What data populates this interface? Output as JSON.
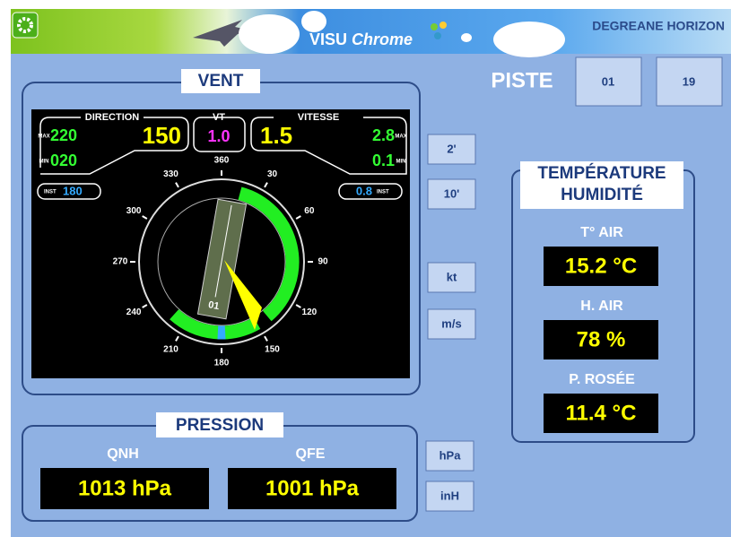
{
  "header": {
    "app_name": "VISU",
    "app_name_suffix": "Chrome",
    "company": "DEGREANE HORIZON"
  },
  "wind": {
    "title": "VENT",
    "direction": {
      "label": "DIRECTION",
      "max_tag": "MAX",
      "min_tag": "MIN",
      "max": "220",
      "min": "020",
      "value": "150",
      "inst_tag": "INST",
      "inst": "180"
    },
    "vt": {
      "label": "VT",
      "value": "1.0"
    },
    "speed": {
      "label": "VITESSE",
      "value": "1.5",
      "max": "2.8",
      "min": "0.1",
      "max_tag": "MAX",
      "min_tag": "MIN",
      "inst": "0.8",
      "inst_tag": "INST"
    },
    "compass_labels": [
      "360",
      "30",
      "60",
      "90",
      "120",
      "150",
      "180",
      "210",
      "240",
      "270",
      "300",
      "330"
    ],
    "runway_label": "01",
    "buttons": [
      "2'",
      "10'",
      "kt",
      "m/s"
    ]
  },
  "runway": {
    "label": "PISTE",
    "options": [
      "01",
      "19"
    ]
  },
  "temperature": {
    "title_line1": "TEMPÉRATURE",
    "title_line2": "HUMIDITÉ",
    "rows": [
      {
        "label": "T° AIR",
        "value": "15.2 °C"
      },
      {
        "label": "H. AIR",
        "value": "78 %"
      },
      {
        "label": "P. ROSÉE",
        "value": "11.4 °C"
      }
    ]
  },
  "pressure": {
    "title": "PRESSION",
    "rows": [
      {
        "label": "QNH",
        "value": "1013 hPa"
      },
      {
        "label": "QFE",
        "value": "1001 hPa"
      }
    ],
    "buttons": [
      "hPa",
      "inH"
    ]
  }
}
